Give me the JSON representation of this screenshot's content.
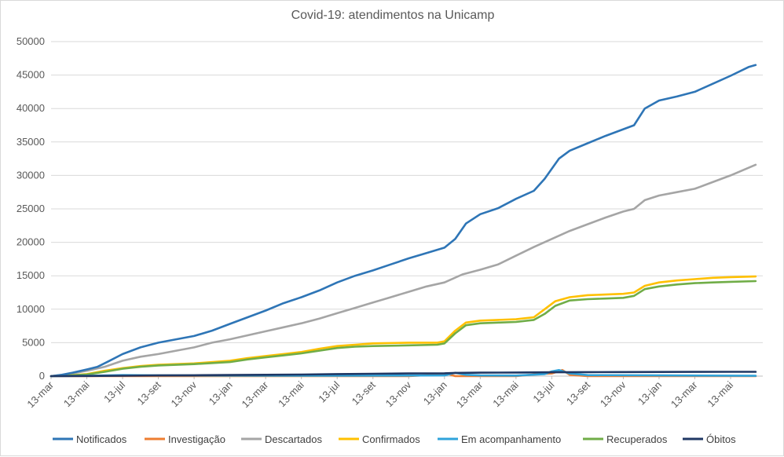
{
  "chart_data": {
    "type": "line",
    "title": "Covid-19: atendimentos  na Unicamp",
    "xlabel": "",
    "ylabel": "",
    "ylim": [
      0,
      50000
    ],
    "yticks": [
      0,
      5000,
      10000,
      15000,
      20000,
      25000,
      30000,
      35000,
      40000,
      45000,
      50000
    ],
    "x_tick_labels": [
      "13-mar",
      "13-mai",
      "13-jul",
      "13-set",
      "13-nov",
      "13-jan",
      "13-mar",
      "13-mai",
      "13-jul",
      "13-set",
      "13-nov",
      "13-jan",
      "13-mar",
      "13-mai",
      "13-jul",
      "13-set",
      "13-nov",
      "13-jan",
      "13-mar",
      "13-mai"
    ],
    "x_range": [
      0,
      19.7
    ],
    "grid": true,
    "legend_position": "bottom",
    "series": [
      {
        "name": "Notificados",
        "color": "#2e75b6",
        "points": [
          [
            0,
            0
          ],
          [
            0.3,
            200
          ],
          [
            0.6,
            500
          ],
          [
            1,
            1000
          ],
          [
            1.3,
            1400
          ],
          [
            1.6,
            2200
          ],
          [
            2,
            3300
          ],
          [
            2.5,
            4300
          ],
          [
            3,
            5000
          ],
          [
            3.5,
            5500
          ],
          [
            4,
            6000
          ],
          [
            4.5,
            6800
          ],
          [
            5,
            7800
          ],
          [
            5.5,
            8800
          ],
          [
            6,
            9800
          ],
          [
            6.5,
            10900
          ],
          [
            7,
            11800
          ],
          [
            7.5,
            12800
          ],
          [
            8,
            14000
          ],
          [
            8.5,
            15000
          ],
          [
            9,
            15800
          ],
          [
            9.5,
            16700
          ],
          [
            10,
            17600
          ],
          [
            10.5,
            18400
          ],
          [
            11,
            19200
          ],
          [
            11.3,
            20500
          ],
          [
            11.6,
            22800
          ],
          [
            12,
            24200
          ],
          [
            12.5,
            25100
          ],
          [
            13,
            26500
          ],
          [
            13.5,
            27700
          ],
          [
            13.8,
            29500
          ],
          [
            14.2,
            32500
          ],
          [
            14.5,
            33700
          ],
          [
            15,
            34800
          ],
          [
            15.5,
            35900
          ],
          [
            16,
            36900
          ],
          [
            16.3,
            37500
          ],
          [
            16.6,
            40000
          ],
          [
            17,
            41200
          ],
          [
            17.5,
            41800
          ],
          [
            18,
            42500
          ],
          [
            18.5,
            43700
          ],
          [
            19,
            44900
          ],
          [
            19.5,
            46200
          ],
          [
            19.7,
            46500
          ]
        ]
      },
      {
        "name": "Investigação",
        "color": "#ed7d31",
        "points": [
          [
            0,
            0
          ],
          [
            5,
            0
          ],
          [
            10,
            0
          ],
          [
            11.1,
            300
          ],
          [
            11.3,
            0
          ],
          [
            13,
            0
          ],
          [
            13.6,
            300
          ],
          [
            14,
            400
          ],
          [
            14.3,
            900
          ],
          [
            14.5,
            200
          ],
          [
            15,
            0
          ],
          [
            19.7,
            0
          ]
        ]
      },
      {
        "name": "Descartados",
        "color": "#a5a5a5",
        "points": [
          [
            0,
            0
          ],
          [
            0.5,
            300
          ],
          [
            1,
            800
          ],
          [
            1.5,
            1400
          ],
          [
            2,
            2300
          ],
          [
            2.5,
            2900
          ],
          [
            3,
            3300
          ],
          [
            3.5,
            3800
          ],
          [
            4,
            4300
          ],
          [
            4.5,
            5000
          ],
          [
            5,
            5500
          ],
          [
            5.5,
            6100
          ],
          [
            6,
            6700
          ],
          [
            6.5,
            7300
          ],
          [
            7,
            7900
          ],
          [
            7.5,
            8600
          ],
          [
            8,
            9400
          ],
          [
            8.5,
            10200
          ],
          [
            9,
            11000
          ],
          [
            9.5,
            11800
          ],
          [
            10,
            12600
          ],
          [
            10.5,
            13400
          ],
          [
            11,
            14000
          ],
          [
            11.5,
            15200
          ],
          [
            12,
            15900
          ],
          [
            12.5,
            16700
          ],
          [
            13,
            18000
          ],
          [
            13.5,
            19300
          ],
          [
            14,
            20500
          ],
          [
            14.5,
            21700
          ],
          [
            15,
            22700
          ],
          [
            15.5,
            23700
          ],
          [
            16,
            24600
          ],
          [
            16.3,
            25000
          ],
          [
            16.6,
            26300
          ],
          [
            17,
            27000
          ],
          [
            17.5,
            27500
          ],
          [
            18,
            28000
          ],
          [
            18.5,
            29000
          ],
          [
            19,
            30000
          ],
          [
            19.7,
            31600
          ]
        ]
      },
      {
        "name": "Confirmados",
        "color": "#ffc000",
        "points": [
          [
            0,
            0
          ],
          [
            0.5,
            100
          ],
          [
            1,
            300
          ],
          [
            1.5,
            800
          ],
          [
            2,
            1200
          ],
          [
            2.5,
            1500
          ],
          [
            3,
            1700
          ],
          [
            4,
            1900
          ],
          [
            5,
            2300
          ],
          [
            5.5,
            2700
          ],
          [
            6,
            3000
          ],
          [
            6.5,
            3300
          ],
          [
            7,
            3600
          ],
          [
            7.5,
            4100
          ],
          [
            8,
            4500
          ],
          [
            8.5,
            4700
          ],
          [
            9,
            4900
          ],
          [
            10,
            5000
          ],
          [
            10.8,
            5000
          ],
          [
            11,
            5200
          ],
          [
            11.3,
            6800
          ],
          [
            11.6,
            8000
          ],
          [
            12,
            8300
          ],
          [
            12.5,
            8400
          ],
          [
            13,
            8500
          ],
          [
            13.5,
            8800
          ],
          [
            13.8,
            10000
          ],
          [
            14.1,
            11200
          ],
          [
            14.5,
            11800
          ],
          [
            15,
            12100
          ],
          [
            15.5,
            12200
          ],
          [
            16,
            12300
          ],
          [
            16.3,
            12500
          ],
          [
            16.6,
            13500
          ],
          [
            17,
            14000
          ],
          [
            17.5,
            14300
          ],
          [
            18,
            14500
          ],
          [
            18.5,
            14700
          ],
          [
            19,
            14800
          ],
          [
            19.7,
            14900
          ]
        ]
      },
      {
        "name": "Em acompanhamento",
        "color": "#2fa3db",
        "points": [
          [
            0,
            0
          ],
          [
            1,
            50
          ],
          [
            2,
            150
          ],
          [
            3,
            100
          ],
          [
            5,
            80
          ],
          [
            8,
            60
          ],
          [
            11,
            100
          ],
          [
            11.3,
            500
          ],
          [
            11.6,
            200
          ],
          [
            12,
            100
          ],
          [
            13,
            80
          ],
          [
            13.8,
            300
          ],
          [
            14,
            700
          ],
          [
            14.2,
            900
          ],
          [
            14.5,
            400
          ],
          [
            15,
            150
          ],
          [
            17,
            100
          ],
          [
            19.7,
            50
          ]
        ]
      },
      {
        "name": "Recuperados",
        "color": "#70ad47",
        "points": [
          [
            0,
            0
          ],
          [
            0.5,
            80
          ],
          [
            1,
            250
          ],
          [
            1.5,
            650
          ],
          [
            2,
            1100
          ],
          [
            2.5,
            1400
          ],
          [
            3,
            1600
          ],
          [
            4,
            1800
          ],
          [
            5,
            2100
          ],
          [
            5.5,
            2500
          ],
          [
            6,
            2800
          ],
          [
            6.5,
            3100
          ],
          [
            7,
            3400
          ],
          [
            7.5,
            3800
          ],
          [
            8,
            4200
          ],
          [
            8.5,
            4400
          ],
          [
            9,
            4500
          ],
          [
            10,
            4600
          ],
          [
            10.8,
            4700
          ],
          [
            11,
            4900
          ],
          [
            11.3,
            6400
          ],
          [
            11.6,
            7600
          ],
          [
            12,
            7900
          ],
          [
            12.5,
            8000
          ],
          [
            13,
            8100
          ],
          [
            13.5,
            8400
          ],
          [
            13.8,
            9300
          ],
          [
            14.1,
            10500
          ],
          [
            14.5,
            11300
          ],
          [
            15,
            11500
          ],
          [
            15.5,
            11600
          ],
          [
            16,
            11700
          ],
          [
            16.3,
            12000
          ],
          [
            16.6,
            13000
          ],
          [
            17,
            13400
          ],
          [
            17.5,
            13700
          ],
          [
            18,
            13900
          ],
          [
            18.5,
            14000
          ],
          [
            19,
            14100
          ],
          [
            19.7,
            14200
          ]
        ]
      },
      {
        "name": "Óbitos",
        "color": "#203864",
        "points": [
          [
            0,
            0
          ],
          [
            1,
            20
          ],
          [
            2,
            60
          ],
          [
            3,
            100
          ],
          [
            4,
            130
          ],
          [
            5,
            160
          ],
          [
            6,
            200
          ],
          [
            7,
            230
          ],
          [
            8,
            300
          ],
          [
            9,
            350
          ],
          [
            10,
            400
          ],
          [
            11,
            420
          ],
          [
            11.3,
            480
          ],
          [
            12,
            520
          ],
          [
            13,
            540
          ],
          [
            14,
            580
          ],
          [
            15,
            600
          ],
          [
            16,
            610
          ],
          [
            17,
            620
          ],
          [
            18,
            630
          ],
          [
            19,
            640
          ],
          [
            19.7,
            650
          ]
        ]
      }
    ]
  }
}
